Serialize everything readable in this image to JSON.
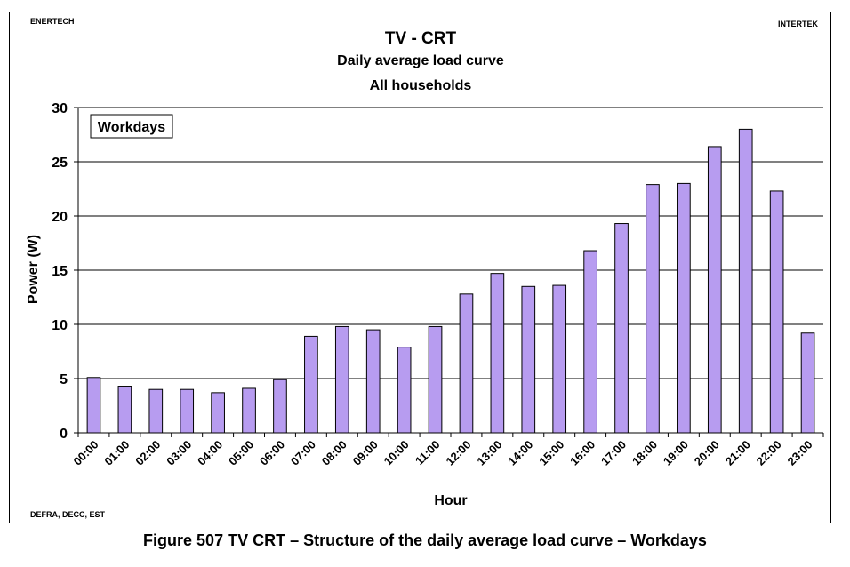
{
  "header": {
    "top_left": "ENERTECH",
    "top_right": "INTERTEK",
    "bottom_left": "DEFRA, DECC, EST"
  },
  "caption": "Figure 507 TV CRT – Structure of the daily average load curve – Workdays",
  "chart_data": {
    "type": "bar",
    "title": "TV - CRT",
    "subtitle": "Daily average load curve",
    "subtitle2": "All households",
    "legend_box": "Workdays",
    "xlabel": "Hour",
    "ylabel": "Power (W)",
    "ylim": [
      0,
      30
    ],
    "yticks": [
      0,
      5,
      10,
      15,
      20,
      25,
      30
    ],
    "grid": true,
    "categories": [
      "00:00",
      "01:00",
      "02:00",
      "03:00",
      "04:00",
      "05:00",
      "06:00",
      "07:00",
      "08:00",
      "09:00",
      "10:00",
      "11:00",
      "12:00",
      "13:00",
      "14:00",
      "15:00",
      "16:00",
      "17:00",
      "18:00",
      "19:00",
      "20:00",
      "21:00",
      "22:00",
      "23:00"
    ],
    "values": [
      5.1,
      4.3,
      4.0,
      4.0,
      3.7,
      4.1,
      4.9,
      8.9,
      9.8,
      9.5,
      7.9,
      9.8,
      12.8,
      14.7,
      13.5,
      13.6,
      16.8,
      19.3,
      22.9,
      23.0,
      26.4,
      28.0,
      22.3,
      9.2
    ],
    "colors": {
      "bar_fill": "#b79cf0",
      "bar_stroke": "#000000"
    }
  }
}
